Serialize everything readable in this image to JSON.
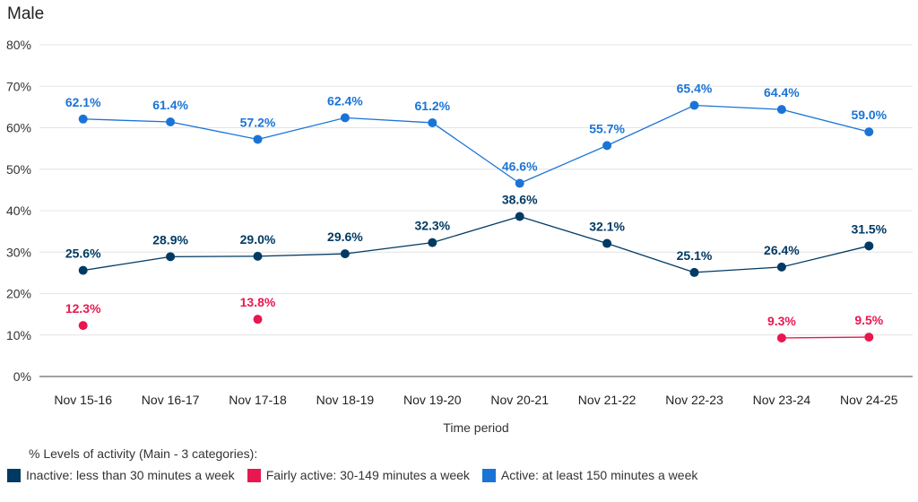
{
  "title": "Male",
  "chart_data": {
    "type": "line",
    "title": "Male",
    "xlabel": "Time period",
    "ylabel": "",
    "ylim": [
      0,
      80
    ],
    "yticks": [
      0,
      10,
      20,
      30,
      40,
      50,
      60,
      70,
      80
    ],
    "ytick_format": "{v}%",
    "categories": [
      "Nov 15-16",
      "Nov 16-17",
      "Nov 17-18",
      "Nov 18-19",
      "Nov 19-20",
      "Nov 20-21",
      "Nov 21-22",
      "Nov 22-23",
      "Nov 23-24",
      "Nov 24-25"
    ],
    "series": [
      {
        "name": "Inactive: less than 30 minutes a week",
        "color": "#003A63",
        "values": [
          25.6,
          28.9,
          29.0,
          29.6,
          32.3,
          38.6,
          32.1,
          25.1,
          26.4,
          31.5
        ]
      },
      {
        "name": "Fairly active: 30-149 minutes a week",
        "color": "#E8174F",
        "values": [
          12.3,
          null,
          13.8,
          null,
          null,
          null,
          null,
          null,
          9.3,
          9.5
        ]
      },
      {
        "name": "Active: at least 150 minutes a week",
        "color": "#1A74D6",
        "values": [
          62.1,
          61.4,
          57.2,
          62.4,
          61.2,
          46.6,
          55.7,
          65.4,
          64.4,
          59.0
        ]
      }
    ],
    "grid": true,
    "legend_title": "% Levels of activity (Main - 3 categories):",
    "legend_position": "bottom-left"
  }
}
